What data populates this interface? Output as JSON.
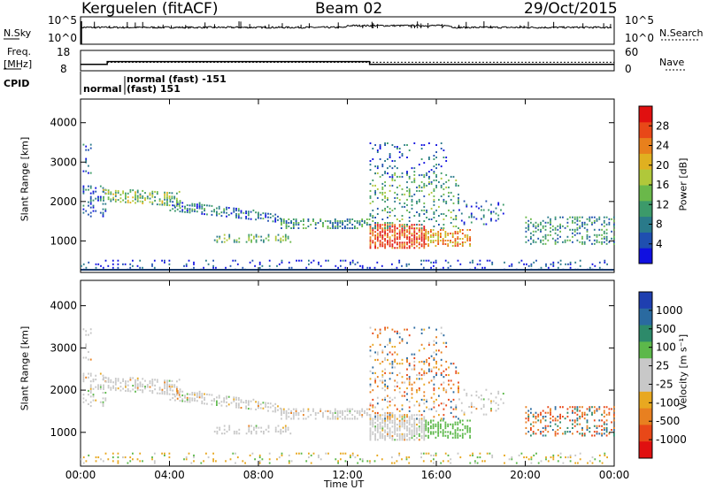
{
  "header": {
    "station": "Kerguelen (fitACF)",
    "beam": "Beam 02",
    "date": "29/Oct/2015"
  },
  "status_panels": {
    "nsky_label": "N.Sky",
    "nsearch_label": "N.Search",
    "nsky_ticks": [
      "10^5",
      "10^0"
    ],
    "nsearch_ticks": [
      "10^5",
      "10^0"
    ],
    "freq_label": "Freq.",
    "freq_unit": "[MHz]",
    "freq_ticks": [
      "18",
      "8"
    ],
    "nave_label": "Nave",
    "nave_ticks": [
      "60",
      "0"
    ],
    "cpid_label": "CPID",
    "cpid_programs": [
      "normal",
      "normal (fast) -151",
      "(fast) 151"
    ],
    "freq_steps": [
      {
        "t": 0,
        "mhz": 10
      },
      {
        "t": 1.2,
        "mhz": 12
      },
      {
        "t": 13.0,
        "mhz": 10
      }
    ],
    "nave_level": 23
  },
  "chart_data": [
    {
      "type": "heatmap",
      "title": "",
      "ylabel": "Slant Range [km]",
      "xlabel": "",
      "x_ticks": [
        "00:00",
        "04:00",
        "08:00",
        "12:00",
        "16:00",
        "20:00",
        "00:00"
      ],
      "y_ticks": [
        1000,
        2000,
        3000,
        4000
      ],
      "ylim": [
        200,
        4600
      ],
      "xlim": [
        0,
        24
      ],
      "colorbar": {
        "label": "Power [dB]",
        "ticks": [
          4,
          8,
          12,
          16,
          20,
          24,
          28
        ],
        "range": [
          0,
          32
        ]
      }
    },
    {
      "type": "heatmap",
      "title": "",
      "ylabel": "Slant Range [km]",
      "xlabel": "Time UT",
      "x_ticks": [
        "00:00",
        "04:00",
        "08:00",
        "12:00",
        "16:00",
        "20:00",
        "00:00"
      ],
      "y_ticks": [
        1000,
        2000,
        3000,
        4000
      ],
      "ylim": [
        200,
        4600
      ],
      "xlim": [
        0,
        24
      ],
      "colorbar": {
        "label": "Velocity [m s⁻¹]",
        "ticks": [
          "1000",
          "500",
          "100",
          "25",
          "-25",
          "-100",
          "-500",
          "-1000"
        ]
      }
    }
  ],
  "colors": {
    "power_scale": [
      "#1010e0",
      "#1f4fb0",
      "#2a7a8a",
      "#3c9a6a",
      "#6ab84a",
      "#b0c83a",
      "#e0b020",
      "#e8801c",
      "#e84818",
      "#e01010"
    ],
    "velocity_scale": [
      "#1f3fb0",
      "#2a6aa0",
      "#2d8a6a",
      "#5cb84a",
      "#c8c8c8",
      "#c8c8c8",
      "#e8a820",
      "#e88020",
      "#e84818",
      "#e01010"
    ]
  }
}
